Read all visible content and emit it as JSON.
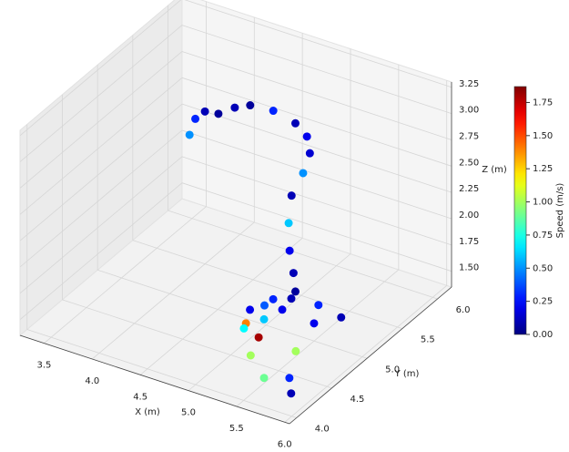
{
  "chart_data": {
    "type": "scatter3d",
    "x_label": "X (m)",
    "y_label": "Y (m)",
    "z_label": "Z (m)",
    "colorbar_label": "Speed (m/s)",
    "colormap": "jet",
    "xlim": [
      3.25,
      6.05
    ],
    "ylim": [
      3.9,
      6.2
    ],
    "zlim": [
      1.35,
      3.3
    ],
    "clim": [
      0,
      1.87
    ],
    "xticks": [
      3.5,
      {
        "value": 4,
        "label": "4.0"
      },
      4.5,
      {
        "value": 5,
        "label": "5.0"
      },
      5.5,
      {
        "value": 6,
        "label": "6.0"
      }
    ],
    "yticks": [
      {
        "value": 4,
        "label": "4.0"
      },
      4.5,
      {
        "value": 5,
        "label": "5.0"
      },
      5.5,
      {
        "value": 6,
        "label": "6.0"
      }
    ],
    "zticks": [
      {
        "value": 1.5,
        "label": "1.50"
      },
      1.75,
      {
        "value": 2,
        "label": "2.00"
      },
      2.25,
      {
        "value": 2.5,
        "label": "2.50"
      },
      2.75,
      {
        "value": 3,
        "label": "3.00"
      },
      3.25
    ],
    "cticks": [
      {
        "value": 0,
        "label": "0.00"
      },
      0.25,
      {
        "value": 0.5,
        "label": "0.50"
      },
      0.75,
      {
        "value": 1,
        "label": "1.00"
      },
      1.25,
      {
        "value": 1.5,
        "label": "1.50"
      },
      1.75
    ],
    "grid": true,
    "x": [
      3.84,
      3.9,
      4.0,
      4.14,
      4.31,
      4.47,
      4.71,
      4.94,
      5.06,
      5.09,
      5.02,
      4.9,
      4.87,
      4.88,
      4.92,
      4.94,
      4.87,
      4.79,
      4.91,
      5.2,
      5.5,
      5.84,
      5.69,
      5.5,
      5.39,
      5.54,
      5.26,
      5.0,
      4.86,
      4.88,
      5.1,
      4.98,
      5.03
    ],
    "y": [
      5.5,
      5.5,
      5.5,
      5.5,
      5.5,
      5.5,
      5.5,
      5.5,
      5.5,
      5.5,
      5.5,
      5.5,
      5.5,
      5.5,
      5.5,
      5.5,
      5.28,
      5.06,
      4.81,
      4.51,
      4.29,
      4.21,
      4.39,
      4.74,
      5.15,
      5.33,
      5.39,
      5.36,
      5.17,
      4.88,
      4.76,
      5.0,
      5.19
    ],
    "z": [
      2.53,
      2.7,
      2.8,
      2.82,
      2.93,
      3.0,
      3.02,
      2.97,
      2.88,
      2.73,
      2.52,
      2.27,
      2.0,
      1.74,
      1.54,
      1.37,
      1.4,
      1.4,
      1.4,
      1.4,
      1.4,
      1.4,
      1.4,
      1.4,
      1.4,
      1.4,
      1.4,
      1.4,
      1.4,
      1.4,
      1.4,
      1.4,
      1.4
    ],
    "speed": [
      0.5,
      0.3,
      0.1,
      0.05,
      0.1,
      0.05,
      0.3,
      0.1,
      0.2,
      0.15,
      0.5,
      0.1,
      0.6,
      0.2,
      0.1,
      0.05,
      0.3,
      0.2,
      0.7,
      1.0,
      0.9,
      0.1,
      0.3,
      1.0,
      0.2,
      0.1,
      0.3,
      0.1,
      0.4,
      1.4,
      1.8,
      0.6,
      0.2
    ]
  }
}
